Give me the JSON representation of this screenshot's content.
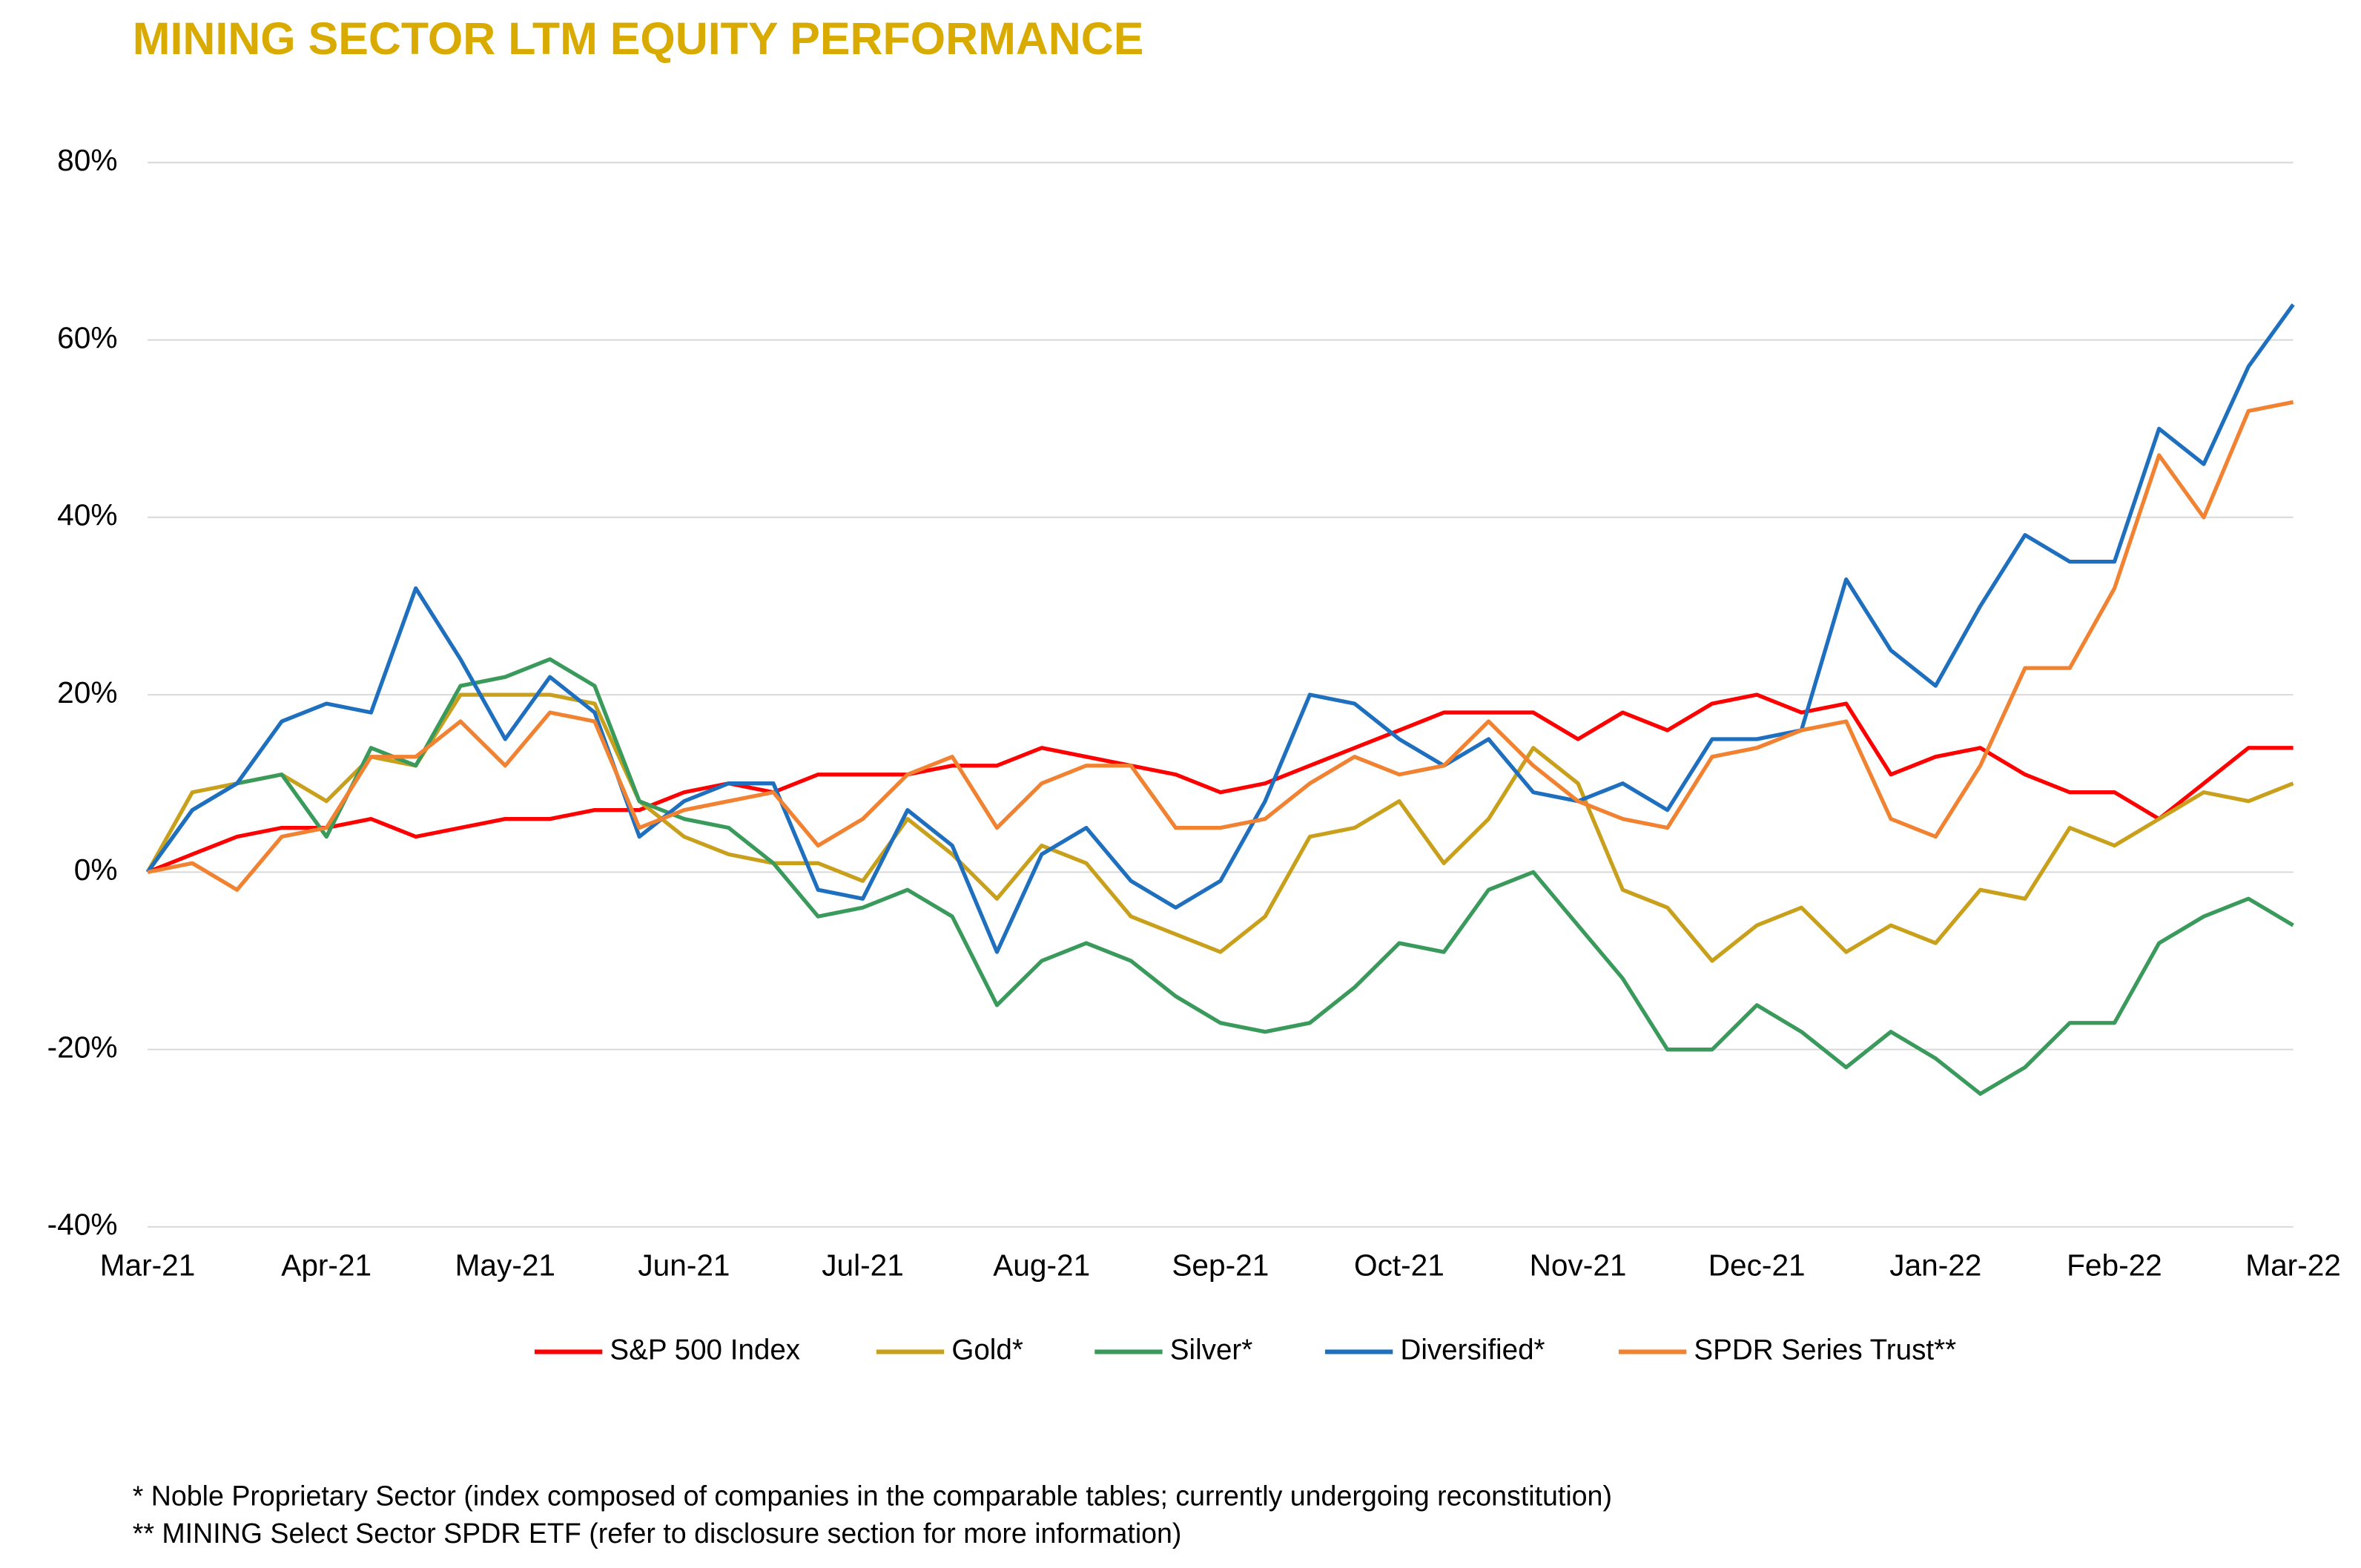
{
  "chart_data": {
    "type": "line",
    "title": "MINING SECTOR LTM EQUITY PERFORMANCE",
    "categories": [
      "Mar-21",
      null,
      null,
      null,
      "Apr-21",
      null,
      null,
      null,
      "May-21",
      null,
      null,
      null,
      "Jun-21",
      null,
      null,
      null,
      "Jul-21",
      null,
      null,
      null,
      "Aug-21",
      null,
      null,
      null,
      "Sep-21",
      null,
      null,
      null,
      "Oct-21",
      null,
      null,
      null,
      "Nov-21",
      null,
      null,
      null,
      "Dec-21",
      null,
      null,
      null,
      "Jan-22",
      null,
      null,
      null,
      "Feb-22",
      null,
      null,
      null,
      "Mar-22"
    ],
    "series": [
      {
        "name": "S&P 500 Index",
        "color": "#ff0000",
        "values": [
          0,
          2,
          4,
          5,
          5,
          6,
          4,
          5,
          6,
          6,
          7,
          7,
          9,
          10,
          9,
          11,
          11,
          11,
          12,
          12,
          14,
          13,
          12,
          11,
          9,
          10,
          12,
          14,
          16,
          18,
          18,
          18,
          15,
          18,
          16,
          19,
          20,
          18,
          19,
          11,
          13,
          14,
          11,
          9,
          9,
          6,
          10,
          14,
          14
        ]
      },
      {
        "name": "Gold*",
        "color": "#c9a01c",
        "values": [
          0,
          9,
          10,
          11,
          8,
          13,
          12,
          20,
          20,
          20,
          19,
          8,
          4,
          2,
          1,
          1,
          -1,
          6,
          2,
          -3,
          3,
          1,
          -5,
          -7,
          -9,
          -5,
          4,
          5,
          8,
          1,
          6,
          14,
          10,
          -2,
          -4,
          -10,
          -6,
          -4,
          -9,
          -6,
          -8,
          -2,
          -3,
          5,
          3,
          6,
          9,
          8,
          10
        ]
      },
      {
        "name": "Silver*",
        "color": "#3a9a5c",
        "values": [
          0,
          7,
          10,
          11,
          4,
          14,
          12,
          21,
          22,
          24,
          21,
          8,
          6,
          5,
          1,
          -5,
          -4,
          -2,
          -5,
          -15,
          -10,
          -8,
          -10,
          -14,
          -17,
          -18,
          -17,
          -13,
          -8,
          -9,
          -2,
          0,
          -6,
          -12,
          -20,
          -20,
          -15,
          -18,
          -22,
          -18,
          -21,
          -25,
          -22,
          -17,
          -17,
          -8,
          -5,
          -3,
          -6
        ]
      },
      {
        "name": "Diversified*",
        "color": "#1f6fbf",
        "values": [
          0,
          7,
          10,
          17,
          19,
          18,
          32,
          24,
          15,
          22,
          18,
          4,
          8,
          10,
          10,
          -2,
          -3,
          7,
          3,
          -9,
          2,
          5,
          -1,
          -4,
          -1,
          8,
          20,
          19,
          15,
          12,
          15,
          9,
          8,
          10,
          7,
          15,
          15,
          16,
          33,
          25,
          21,
          30,
          38,
          35,
          35,
          50,
          46,
          57,
          64
        ]
      },
      {
        "name": "SPDR Series Trust**",
        "color": "#f08232",
        "values": [
          0,
          1,
          -2,
          4,
          5,
          13,
          13,
          17,
          12,
          18,
          17,
          5,
          7,
          8,
          9,
          3,
          6,
          11,
          13,
          5,
          10,
          12,
          12,
          5,
          5,
          6,
          10,
          13,
          11,
          12,
          17,
          12,
          8,
          6,
          5,
          13,
          14,
          16,
          17,
          6,
          4,
          12,
          23,
          23,
          32,
          47,
          40,
          52,
          53
        ]
      }
    ],
    "ylim": [
      -40,
      80
    ],
    "yticks": [
      {
        "value": -40,
        "label": "-40%"
      },
      {
        "value": -20,
        "label": "-20%"
      },
      {
        "value": 0,
        "label": "0%"
      },
      {
        "value": 20,
        "label": "20%"
      },
      {
        "value": 40,
        "label": "40%"
      },
      {
        "value": 60,
        "label": "60%"
      },
      {
        "value": 80,
        "label": "80%"
      }
    ],
    "grid": true,
    "legend": "bottom",
    "notes": [
      "* Noble Proprietary Sector (index composed of companies in the comparable tables; currently undergoing reconstitution)",
      "** MINING Select Sector SPDR ETF (refer to disclosure section for more information)"
    ]
  }
}
